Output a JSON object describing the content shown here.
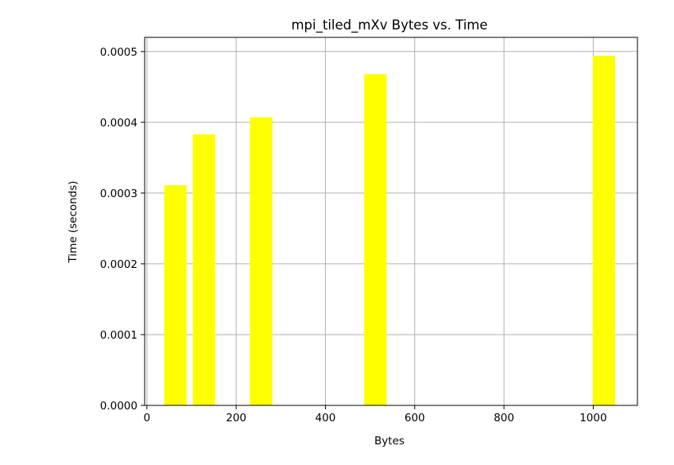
{
  "chart_data": {
    "type": "bar",
    "title": "mpi_tiled_mXv Bytes vs. Time",
    "xlabel": "Bytes",
    "ylabel": "Time (seconds)",
    "x": [
      64,
      128,
      256,
      512,
      1024
    ],
    "values": [
      0.000311,
      0.000383,
      0.000407,
      0.000468,
      0.000494
    ],
    "bar_width": 50,
    "bar_color": "#ffff00",
    "xlim": [
      -5,
      1099
    ],
    "ylim": [
      0,
      0.00052
    ],
    "xticks": [
      0,
      200,
      400,
      600,
      800,
      1000
    ],
    "xtick_labels": [
      "0",
      "200",
      "400",
      "600",
      "800",
      "1000"
    ],
    "yticks": [
      0,
      0.0001,
      0.0002,
      0.0003,
      0.0004,
      0.0005
    ],
    "ytick_labels": [
      "0.0000",
      "0.0001",
      "0.0002",
      "0.0003",
      "0.0004",
      "0.0005"
    ],
    "grid": true,
    "grid_color": "#b0b0b0"
  }
}
